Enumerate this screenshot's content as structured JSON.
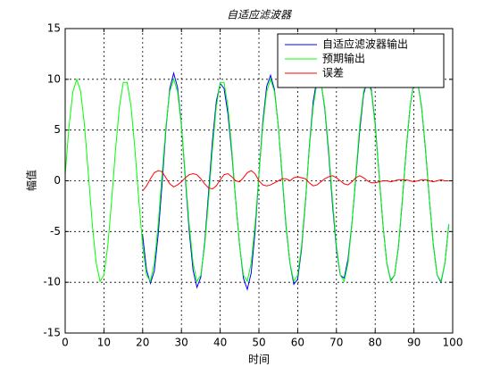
{
  "chart_data": {
    "type": "line",
    "title": "自适应滤波器",
    "xlabel": "时间",
    "ylabel": "幅值",
    "x": [
      0,
      1,
      2,
      3,
      4,
      5,
      6,
      7,
      8,
      9,
      10,
      11,
      12,
      13,
      14,
      15,
      16,
      17,
      18,
      19,
      20,
      21,
      22,
      23,
      24,
      25,
      26,
      27,
      28,
      29,
      30,
      31,
      32,
      33,
      34,
      35,
      36,
      37,
      38,
      39,
      40,
      41,
      42,
      43,
      44,
      45,
      46,
      47,
      48,
      49,
      50,
      51,
      52,
      53,
      54,
      55,
      56,
      57,
      58,
      59,
      60,
      61,
      62,
      63,
      64,
      65,
      66,
      67,
      68,
      69,
      70,
      71,
      72,
      73,
      74,
      75,
      76,
      77,
      78,
      79,
      80,
      81,
      82,
      83,
      84,
      85,
      86,
      87,
      88,
      89,
      90,
      91,
      92,
      93,
      94,
      95,
      96,
      97,
      98,
      99
    ],
    "series": [
      {
        "name": "自适应滤波器输出",
        "color": "#0000ff",
        "values": [
          null,
          null,
          null,
          null,
          null,
          null,
          null,
          null,
          null,
          null,
          null,
          null,
          null,
          null,
          null,
          null,
          null,
          null,
          null,
          null,
          -5.4,
          -8.8,
          -10.1,
          -8.9,
          -5.3,
          -0.3,
          5.1,
          9.1,
          10.6,
          9.2,
          5.5,
          0.3,
          -4.9,
          -8.8,
          -10.5,
          -9.5,
          -6.1,
          -1.2,
          3.9,
          7.8,
          9.6,
          9.1,
          6.6,
          2.7,
          -1.9,
          -6.3,
          -9.6,
          -10.7,
          -9.1,
          -5.0,
          0.6,
          5.8,
          9.3,
          10.4,
          9.0,
          5.4,
          0.4,
          -4.5,
          -8.1,
          -10.2,
          -9.7,
          -6.7,
          -2.1,
          3.3,
          7.8,
          10.1,
          9.8,
          7.1,
          2.7,
          -2.4,
          -6.7,
          -9.3,
          -9.6,
          -7.7,
          -4.2,
          0.3,
          4.9,
          8.5,
          10.0,
          9.0,
          5.6,
          0.7,
          -4.3,
          -8.1,
          -9.8,
          -9.3,
          -6.5,
          -2.0,
          3.0,
          7.3,
          9.8,
          9.7,
          7.2,
          3.0,
          -1.9,
          -6.3,
          -9.3,
          -10.0,
          -8.1,
          -4.3
        ]
      },
      {
        "name": "预期输出",
        "color": "#00ff00",
        "values": [
          0.6,
          5.4,
          8.8,
          10,
          8.8,
          5.4,
          0.6,
          -4.3,
          -8.1,
          -9.9,
          -9.3,
          -6.4,
          -1.9,
          3.1,
          7.3,
          9.7,
          9.7,
          7.3,
          3.1,
          -1.9,
          -6.4,
          -9.3,
          -9.9,
          -8.1,
          -4.3,
          0.6,
          5.4,
          8.8,
          10,
          8.8,
          5.4,
          0.6,
          -4.3,
          -8.1,
          -9.9,
          -9.3,
          -6.4,
          -1.9,
          3.1,
          7.3,
          9.7,
          9.7,
          7.3,
          3.1,
          -1.9,
          -6.4,
          -9.3,
          -9.9,
          -8.1,
          -4.3,
          0.6,
          5.4,
          8.8,
          10,
          8.8,
          5.4,
          0.6,
          -4.3,
          -8.1,
          -9.9,
          -9.3,
          -6.4,
          -1.9,
          3.1,
          7.3,
          9.7,
          9.7,
          7.3,
          3.1,
          -1.9,
          -6.4,
          -9.3,
          -9.9,
          -8.1,
          -4.3,
          0.6,
          5.4,
          8.8,
          10,
          8.8,
          5.4,
          0.6,
          -4.3,
          -8.1,
          -9.9,
          -9.3,
          -6.4,
          -1.9,
          3.1,
          7.3,
          9.7,
          9.7,
          7.3,
          3.1,
          -1.9,
          -6.4,
          -9.3,
          -9.9,
          -8.1,
          -4.3
        ]
      },
      {
        "name": "误差",
        "color": "#ff0000",
        "values": [
          null,
          null,
          null,
          null,
          null,
          null,
          null,
          null,
          null,
          null,
          null,
          null,
          null,
          null,
          null,
          null,
          null,
          null,
          null,
          null,
          -1.0,
          -0.5,
          0.2,
          0.8,
          1.0,
          0.9,
          0.3,
          -0.3,
          -0.6,
          -0.4,
          -0.1,
          0.3,
          0.6,
          0.7,
          0.6,
          0.2,
          -0.3,
          -0.7,
          -0.8,
          -0.5,
          0.1,
          0.6,
          0.7,
          0.4,
          0.0,
          -0.1,
          0.3,
          0.8,
          1.0,
          0.7,
          0.0,
          -0.4,
          -0.5,
          -0.4,
          -0.2,
          0.0,
          0.2,
          0.2,
          0.0,
          0.3,
          0.4,
          0.3,
          0.2,
          -0.2,
          -0.5,
          -0.4,
          -0.1,
          0.2,
          0.4,
          0.5,
          0.3,
          0.0,
          -0.3,
          -0.4,
          -0.1,
          0.3,
          0.5,
          0.3,
          0.0,
          -0.2,
          -0.2,
          -0.1,
          0.0,
          0.0,
          -0.1,
          0.0,
          0.1,
          0.1,
          0.1,
          0.0,
          -0.1,
          0.0,
          0.1,
          0.1,
          0.0,
          -0.1,
          0.0,
          0.1,
          0.0,
          0.0
        ]
      }
    ],
    "xlim": [
      0,
      100
    ],
    "xticks": [
      0,
      10,
      20,
      30,
      40,
      50,
      60,
      70,
      80,
      90,
      100
    ],
    "ylim": [
      -15,
      15
    ],
    "yticks": [
      -15,
      -10,
      -5,
      0,
      5,
      10,
      15
    ],
    "grid": true,
    "legend": "upper right"
  }
}
